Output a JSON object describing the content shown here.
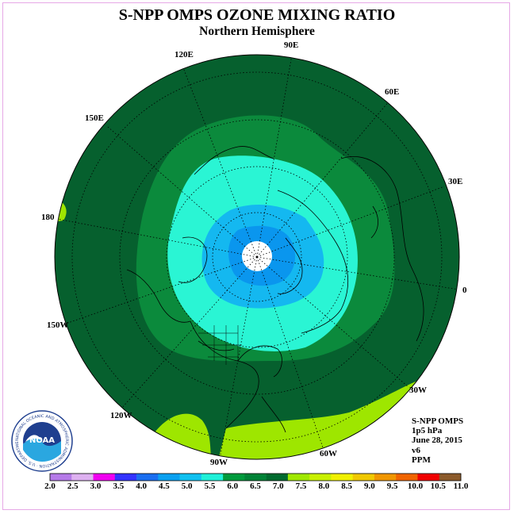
{
  "title": "S-NPP OMPS OZONE MIXING RATIO",
  "subtitle": "Northern Hemisphere",
  "longitude_labels": {
    "lon_90e": "90E",
    "lon_120e": "120E",
    "lon_60e": "60E",
    "lon_150e": "150E",
    "lon_30e": "30E",
    "lon_180": "180",
    "lon_0": "0",
    "lon_150w": "150W",
    "lon_30w": "30W",
    "lon_120w": "120W",
    "lon_60w": "60W",
    "lon_90w": "90W"
  },
  "info": {
    "instrument": "S-NPP OMPS",
    "level": "1p5 hPa",
    "date": "June 28, 2015",
    "version": "v6",
    "units": "PPM"
  },
  "logo": {
    "text": "NOAA",
    "ring_text": "NATIONAL OCEANIC AND ATMOSPHERIC ADMINISTRATION · U.S. DEPARTMENT OF COMMERCE"
  },
  "colorbar": {
    "labels": [
      "2.0",
      "2.5",
      "3.0",
      "3.5",
      "4.0",
      "4.5",
      "5.0",
      "5.5",
      "6.0",
      "6.5",
      "7.0",
      "7.5",
      "8.0",
      "8.5",
      "9.0",
      "9.5",
      "10.0",
      "10.5",
      "11.0"
    ],
    "colors": [
      "#b57ae8",
      "#ddb0f0",
      "#f000f0",
      "#3333ff",
      "#1a6ef0",
      "#0aa0f0",
      "#10c0f0",
      "#20f0d8",
      "#009a3c",
      "#008236",
      "#006a2e",
      "#a0e800",
      "#c8f000",
      "#f0f000",
      "#f0c800",
      "#f09600",
      "#f06400",
      "#f00000",
      "#8b5a2b"
    ]
  },
  "map_colors": {
    "background_band": "#06602e",
    "band_6": "#0b8a3c",
    "band_55": "#2af5d4",
    "band_5": "#14b8f0",
    "band_45": "#0a96ee",
    "band_75": "#9ee600",
    "pole_missing": "#ffffff"
  }
}
